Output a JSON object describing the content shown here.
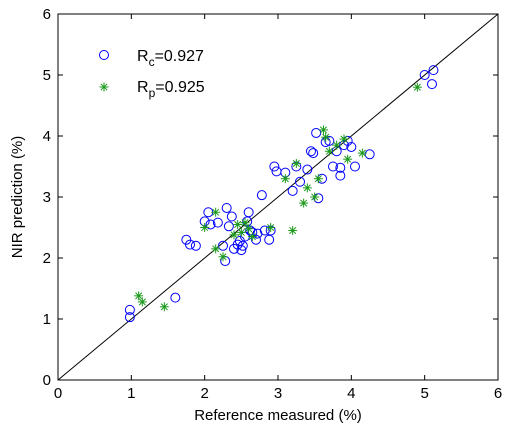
{
  "chart_data": {
    "type": "scatter",
    "xlabel": "Reference measured (%)",
    "ylabel": "NIR prediction (%)",
    "xlim": [
      0,
      6
    ],
    "ylim": [
      0,
      6
    ],
    "xticks": [
      "0",
      "1",
      "2",
      "3",
      "4",
      "5",
      "6"
    ],
    "yticks": [
      "0",
      "1",
      "2",
      "3",
      "4",
      "5",
      "6"
    ],
    "grid": false,
    "legend_position": "top-left",
    "reference_line": {
      "label": "",
      "from": [
        0,
        0
      ],
      "to": [
        6,
        6
      ]
    },
    "series": [
      {
        "name": "Rc=0.927",
        "legend_main": "R",
        "legend_sub": "c",
        "legend_value": "=0.927",
        "marker": "circle",
        "color": "#0000ff",
        "points": [
          [
            0.98,
            1.15
          ],
          [
            0.98,
            1.03
          ],
          [
            1.6,
            1.35
          ],
          [
            1.75,
            2.3
          ],
          [
            1.8,
            2.22
          ],
          [
            1.88,
            2.2
          ],
          [
            2.0,
            2.6
          ],
          [
            2.05,
            2.75
          ],
          [
            2.08,
            2.55
          ],
          [
            2.18,
            2.58
          ],
          [
            2.25,
            2.2
          ],
          [
            2.28,
            1.95
          ],
          [
            2.3,
            2.82
          ],
          [
            2.33,
            2.52
          ],
          [
            2.37,
            2.68
          ],
          [
            2.4,
            2.15
          ],
          [
            2.45,
            2.22
          ],
          [
            2.48,
            2.28
          ],
          [
            2.5,
            2.13
          ],
          [
            2.52,
            2.2
          ],
          [
            2.55,
            2.35
          ],
          [
            2.58,
            2.6
          ],
          [
            2.6,
            2.75
          ],
          [
            2.62,
            2.45
          ],
          [
            2.65,
            2.42
          ],
          [
            2.7,
            2.3
          ],
          [
            2.72,
            2.4
          ],
          [
            2.78,
            3.03
          ],
          [
            2.82,
            2.45
          ],
          [
            2.88,
            2.3
          ],
          [
            2.9,
            2.45
          ],
          [
            2.95,
            3.5
          ],
          [
            2.98,
            3.42
          ],
          [
            3.1,
            3.4
          ],
          [
            3.2,
            3.1
          ],
          [
            3.25,
            3.5
          ],
          [
            3.3,
            3.25
          ],
          [
            3.4,
            3.45
          ],
          [
            3.45,
            3.75
          ],
          [
            3.48,
            3.72
          ],
          [
            3.52,
            4.05
          ],
          [
            3.55,
            2.98
          ],
          [
            3.6,
            3.3
          ],
          [
            3.65,
            3.9
          ],
          [
            3.7,
            3.92
          ],
          [
            3.75,
            3.5
          ],
          [
            3.8,
            3.75
          ],
          [
            3.85,
            3.35
          ],
          [
            3.85,
            3.48
          ],
          [
            3.9,
            3.85
          ],
          [
            3.95,
            3.92
          ],
          [
            4.0,
            3.82
          ],
          [
            4.05,
            3.5
          ],
          [
            4.25,
            3.7
          ],
          [
            5.0,
            5.0
          ],
          [
            5.12,
            5.08
          ],
          [
            5.1,
            4.85
          ]
        ]
      },
      {
        "name": "Rp=0.925",
        "legend_main": "R",
        "legend_sub": "p",
        "legend_value": "=0.925",
        "marker": "asterisk",
        "color": "#1a9a1a",
        "points": [
          [
            1.1,
            1.38
          ],
          [
            1.15,
            1.28
          ],
          [
            1.45,
            1.2
          ],
          [
            2.0,
            2.5
          ],
          [
            2.15,
            2.75
          ],
          [
            2.15,
            2.15
          ],
          [
            2.25,
            2.02
          ],
          [
            2.4,
            2.38
          ],
          [
            2.45,
            2.55
          ],
          [
            2.5,
            2.42
          ],
          [
            2.55,
            2.58
          ],
          [
            2.6,
            2.48
          ],
          [
            2.65,
            2.35
          ],
          [
            2.9,
            2.5
          ],
          [
            3.1,
            3.3
          ],
          [
            3.2,
            2.45
          ],
          [
            3.25,
            3.55
          ],
          [
            3.35,
            2.9
          ],
          [
            3.4,
            3.15
          ],
          [
            3.5,
            3.0
          ],
          [
            3.55,
            3.3
          ],
          [
            3.62,
            4.1
          ],
          [
            3.65,
            3.98
          ],
          [
            3.7,
            3.75
          ],
          [
            3.8,
            3.85
          ],
          [
            3.9,
            3.95
          ],
          [
            3.95,
            3.62
          ],
          [
            4.15,
            3.72
          ],
          [
            4.9,
            4.8
          ]
        ]
      }
    ]
  }
}
